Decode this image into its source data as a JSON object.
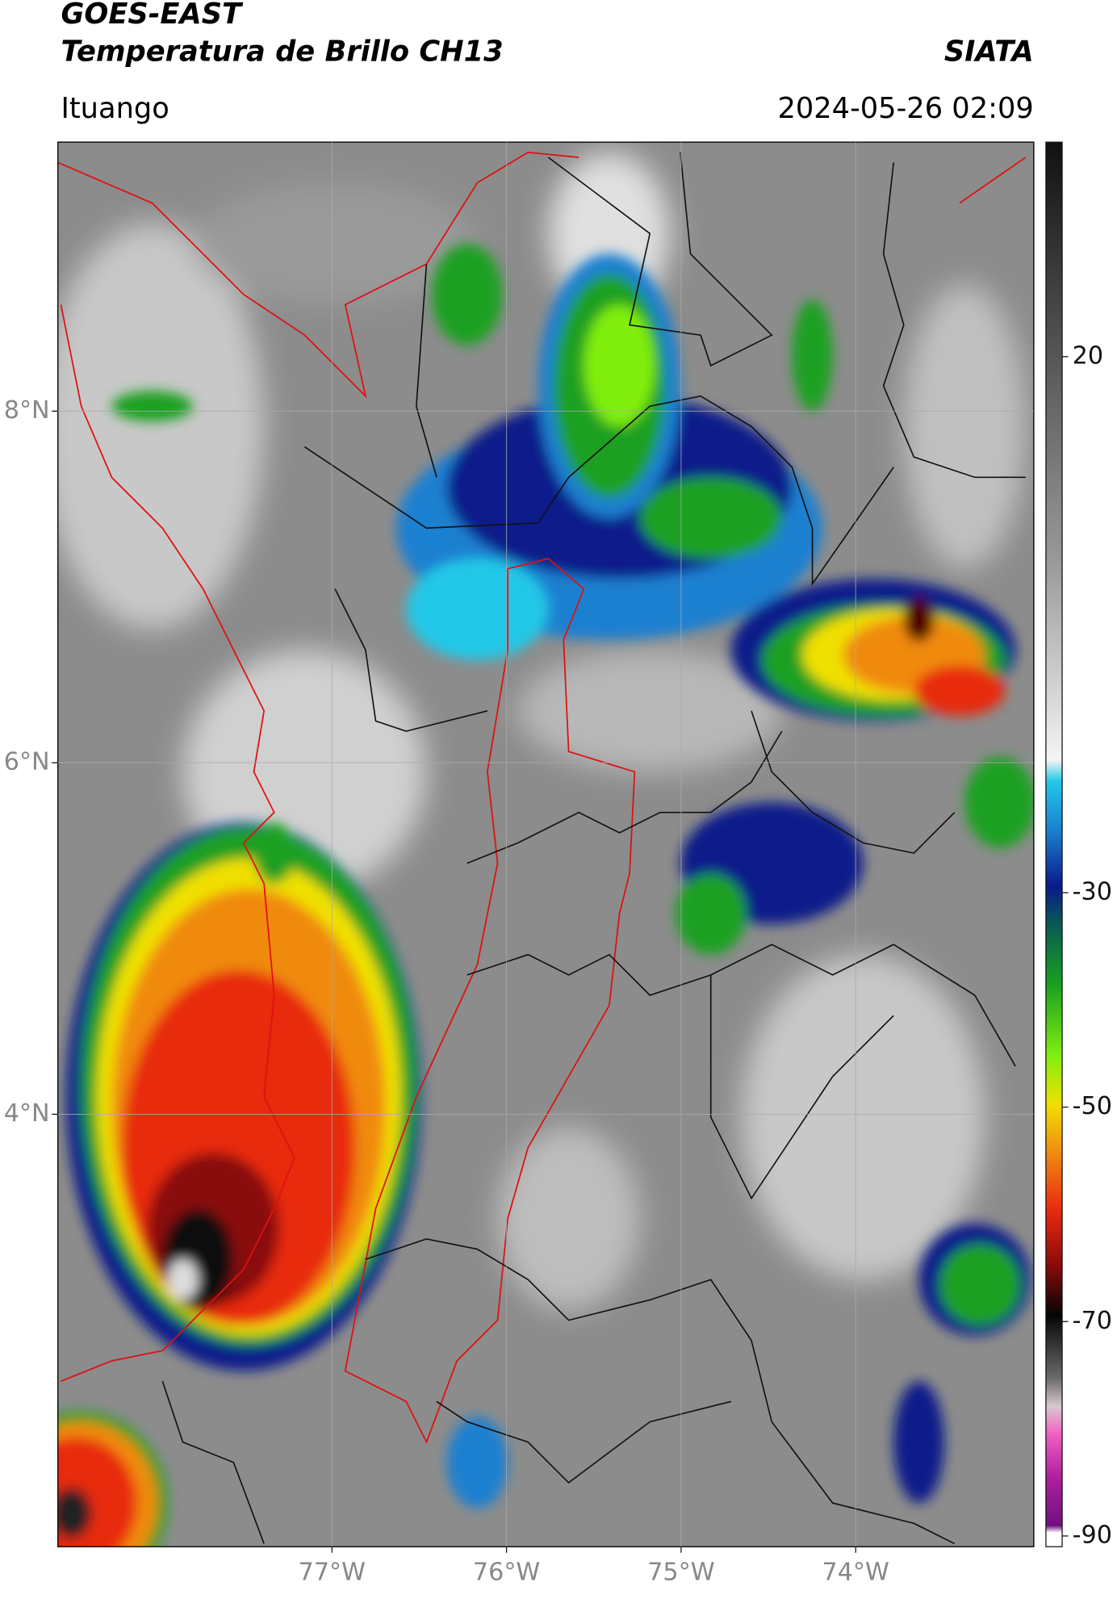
{
  "header": {
    "title_line1": "GOES-EAST",
    "title_line2": "Temperatura de Brillo CH13",
    "source": "SIATA",
    "location": "Ituango",
    "datetime": "2024-05-26 02:09"
  },
  "map": {
    "lat_range": [
      1.54,
      9.53
    ],
    "lon_range": [
      -78.57,
      -72.98
    ],
    "lat_ticks": [
      {
        "value": 8,
        "label": "8°N"
      },
      {
        "value": 6,
        "label": "6°N"
      },
      {
        "value": 4,
        "label": "4°N"
      }
    ],
    "lon_ticks": [
      {
        "value": -77,
        "label": "77°W"
      },
      {
        "value": -76,
        "label": "76°W"
      },
      {
        "value": -75,
        "label": "75°W"
      },
      {
        "value": -74,
        "label": "74°W"
      }
    ],
    "grid": true
  },
  "colorbar": {
    "range": [
      -91,
      40
    ],
    "ticks": [
      20,
      -30,
      -50,
      -70,
      -90
    ]
  }
}
